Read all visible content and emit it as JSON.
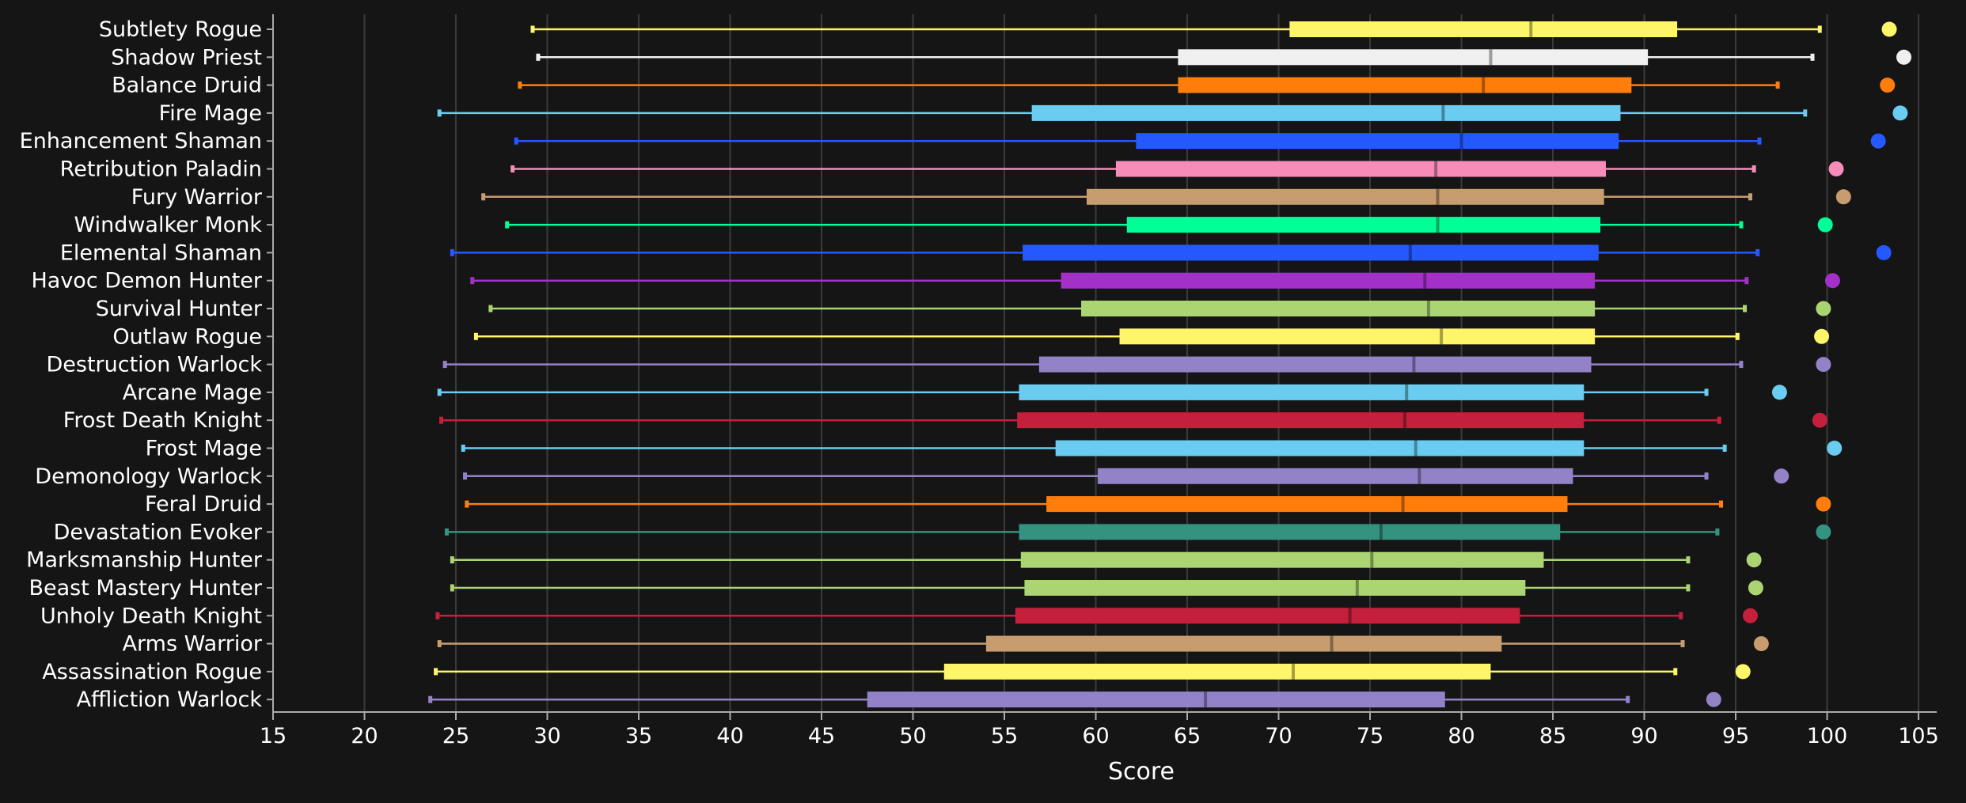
{
  "chart_data": {
    "type": "box",
    "title": "",
    "xlabel": "Score",
    "ylabel": "",
    "xlim": [
      15,
      106
    ],
    "xticks": [
      15,
      20,
      25,
      30,
      35,
      40,
      45,
      50,
      55,
      60,
      65,
      70,
      75,
      80,
      85,
      90,
      95,
      100,
      105
    ],
    "grid": true,
    "legend": "none",
    "series": [
      {
        "name": "Subtlety Rogue",
        "color": "#FFF569",
        "min": 29.2,
        "q1": 70.6,
        "median": 83.8,
        "q3": 91.8,
        "max": 99.6,
        "outlier": 103.4
      },
      {
        "name": "Shadow Priest",
        "color": "#F0F0F0",
        "min": 29.5,
        "q1": 64.5,
        "median": 81.6,
        "q3": 90.2,
        "max": 99.2,
        "outlier": 104.2
      },
      {
        "name": "Balance Druid",
        "color": "#FF7D0A",
        "min": 28.5,
        "q1": 64.5,
        "median": 81.2,
        "q3": 89.3,
        "max": 97.3,
        "outlier": 103.3
      },
      {
        "name": "Fire Mage",
        "color": "#69CCF0",
        "min": 24.1,
        "q1": 56.5,
        "median": 79.0,
        "q3": 88.7,
        "max": 98.8,
        "outlier": 104.0
      },
      {
        "name": "Enhancement Shaman",
        "color": "#2459FF",
        "min": 28.3,
        "q1": 62.2,
        "median": 80.0,
        "q3": 88.6,
        "max": 96.3,
        "outlier": 102.8
      },
      {
        "name": "Retribution Paladin",
        "color": "#F58CBA",
        "min": 28.1,
        "q1": 61.1,
        "median": 78.6,
        "q3": 87.9,
        "max": 96.0,
        "outlier": 100.5
      },
      {
        "name": "Fury Warrior",
        "color": "#C79C6E",
        "min": 26.5,
        "q1": 59.5,
        "median": 78.7,
        "q3": 87.8,
        "max": 95.8,
        "outlier": 100.9
      },
      {
        "name": "Windwalker Monk",
        "color": "#00FF96",
        "min": 27.8,
        "q1": 61.7,
        "median": 78.7,
        "q3": 87.6,
        "max": 95.3,
        "outlier": 99.9
      },
      {
        "name": "Elemental Shaman",
        "color": "#2459FF",
        "min": 24.8,
        "q1": 56.0,
        "median": 77.2,
        "q3": 87.5,
        "max": 96.2,
        "outlier": 103.1
      },
      {
        "name": "Havoc Demon Hunter",
        "color": "#A330C9",
        "min": 25.9,
        "q1": 58.1,
        "median": 78.0,
        "q3": 87.3,
        "max": 95.6,
        "outlier": 100.3
      },
      {
        "name": "Survival Hunter",
        "color": "#ABD473",
        "min": 26.9,
        "q1": 59.2,
        "median": 78.2,
        "q3": 87.3,
        "max": 95.5,
        "outlier": 99.8
      },
      {
        "name": "Outlaw Rogue",
        "color": "#FFF569",
        "min": 26.1,
        "q1": 61.3,
        "median": 78.9,
        "q3": 87.3,
        "max": 95.1,
        "outlier": 99.7
      },
      {
        "name": "Destruction Warlock",
        "color": "#9482C9",
        "min": 24.4,
        "q1": 56.9,
        "median": 77.4,
        "q3": 87.1,
        "max": 95.3,
        "outlier": 99.8
      },
      {
        "name": "Arcane Mage",
        "color": "#69CCF0",
        "min": 24.1,
        "q1": 55.8,
        "median": 77.0,
        "q3": 86.7,
        "max": 93.4,
        "outlier": 97.4
      },
      {
        "name": "Frost Death Knight",
        "color": "#C41F3B",
        "min": 24.2,
        "q1": 55.7,
        "median": 76.9,
        "q3": 86.7,
        "max": 94.1,
        "outlier": 99.6
      },
      {
        "name": "Frost Mage",
        "color": "#69CCF0",
        "min": 25.4,
        "q1": 57.8,
        "median": 77.5,
        "q3": 86.7,
        "max": 94.4,
        "outlier": 100.4
      },
      {
        "name": "Demonology Warlock",
        "color": "#9482C9",
        "min": 25.5,
        "q1": 60.1,
        "median": 77.7,
        "q3": 86.1,
        "max": 93.4,
        "outlier": 97.5
      },
      {
        "name": "Feral Druid",
        "color": "#FF7D0A",
        "min": 25.6,
        "q1": 57.3,
        "median": 76.8,
        "q3": 85.8,
        "max": 94.2,
        "outlier": 99.8
      },
      {
        "name": "Devastation Evoker",
        "color": "#33937F",
        "min": 24.5,
        "q1": 55.8,
        "median": 75.6,
        "q3": 85.4,
        "max": 94.0,
        "outlier": 99.8
      },
      {
        "name": "Marksmanship Hunter",
        "color": "#ABD473",
        "min": 24.8,
        "q1": 55.9,
        "median": 75.1,
        "q3": 84.5,
        "max": 92.4,
        "outlier": 96.0
      },
      {
        "name": "Beast Mastery Hunter",
        "color": "#ABD473",
        "min": 24.8,
        "q1": 56.1,
        "median": 74.3,
        "q3": 83.5,
        "max": 92.4,
        "outlier": 96.1
      },
      {
        "name": "Unholy Death Knight",
        "color": "#C41F3B",
        "min": 24.0,
        "q1": 55.6,
        "median": 73.9,
        "q3": 83.2,
        "max": 92.0,
        "outlier": 95.8
      },
      {
        "name": "Arms Warrior",
        "color": "#C79C6E",
        "min": 24.1,
        "q1": 54.0,
        "median": 72.9,
        "q3": 82.2,
        "max": 92.1,
        "outlier": 96.4
      },
      {
        "name": "Assassination Rogue",
        "color": "#FFF569",
        "min": 23.9,
        "q1": 51.7,
        "median": 70.8,
        "q3": 81.6,
        "max": 91.7,
        "outlier": 95.4
      },
      {
        "name": "Affliction Warlock",
        "color": "#9482C9",
        "min": 23.6,
        "q1": 47.5,
        "median": 66.0,
        "q3": 79.1,
        "max": 89.1,
        "outlier": 93.8
      }
    ]
  }
}
